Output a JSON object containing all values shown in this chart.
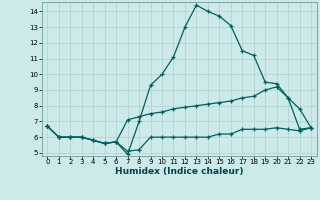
{
  "xlabel": "Humidex (Indice chaleur)",
  "bg_color": "#cdeaea",
  "grid_color": "#b0d0d0",
  "line_color": "#006060",
  "xlim": [
    -0.5,
    23.5
  ],
  "ylim": [
    4.8,
    14.6
  ],
  "yticks": [
    5,
    6,
    7,
    8,
    9,
    10,
    11,
    12,
    13,
    14
  ],
  "xticks": [
    0,
    1,
    2,
    3,
    4,
    5,
    6,
    7,
    8,
    9,
    10,
    11,
    12,
    13,
    14,
    15,
    16,
    17,
    18,
    19,
    20,
    21,
    22,
    23
  ],
  "line1_x": [
    0,
    1,
    2,
    3,
    4,
    5,
    6,
    7,
    8,
    9,
    10,
    11,
    12,
    13,
    14,
    15,
    16,
    17,
    18,
    19,
    20,
    21,
    22,
    23
  ],
  "line1_y": [
    6.7,
    6.0,
    6.0,
    6.0,
    5.8,
    5.6,
    5.7,
    4.9,
    7.0,
    9.3,
    10.0,
    11.1,
    13.0,
    14.4,
    14.0,
    13.7,
    13.1,
    11.5,
    11.2,
    9.5,
    9.4,
    8.5,
    7.8,
    6.6
  ],
  "line2_x": [
    0,
    1,
    2,
    3,
    4,
    5,
    6,
    7,
    8,
    9,
    10,
    11,
    12,
    13,
    14,
    15,
    16,
    17,
    18,
    19,
    20,
    21,
    22,
    23
  ],
  "line2_y": [
    6.7,
    6.0,
    6.0,
    6.0,
    5.8,
    5.6,
    5.7,
    7.1,
    7.3,
    7.5,
    7.6,
    7.8,
    7.9,
    8.0,
    8.1,
    8.2,
    8.3,
    8.5,
    8.6,
    9.0,
    9.2,
    8.5,
    6.5,
    6.6
  ],
  "line3_x": [
    0,
    1,
    2,
    3,
    4,
    5,
    6,
    7,
    8,
    9,
    10,
    11,
    12,
    13,
    14,
    15,
    16,
    17,
    18,
    19,
    20,
    21,
    22,
    23
  ],
  "line3_y": [
    6.7,
    6.0,
    6.0,
    6.0,
    5.8,
    5.6,
    5.7,
    5.1,
    5.2,
    6.0,
    6.0,
    6.0,
    6.0,
    6.0,
    6.0,
    6.2,
    6.2,
    6.5,
    6.5,
    6.5,
    6.6,
    6.5,
    6.4,
    6.6
  ]
}
